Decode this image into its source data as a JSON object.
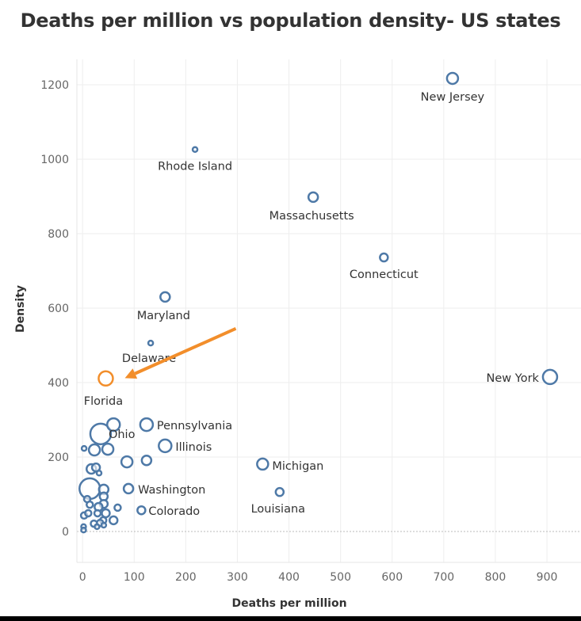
{
  "chart_data": {
    "type": "scatter",
    "title": "Deaths per million vs population density- US states",
    "xlabel": "Deaths per million",
    "ylabel": "Density",
    "xlim": [
      -11,
      966
    ],
    "ylim": [
      -83,
      1268
    ],
    "xticks": [
      "0",
      "100",
      "200",
      "300",
      "400",
      "500",
      "600",
      "700",
      "800",
      "900"
    ],
    "yticks": [
      "0",
      "200",
      "400",
      "600",
      "800",
      "1000",
      "1200"
    ],
    "grid": true,
    "colors": {
      "default": "#4e79a7",
      "highlight": "#f28e2b"
    },
    "points": [
      {
        "label": "New Jersey",
        "x": 717,
        "y": 1217,
        "size": 7
      },
      {
        "label": "Rhode Island",
        "x": 218,
        "y": 1026,
        "size": 3
      },
      {
        "label": "Massachusetts",
        "x": 447,
        "y": 898,
        "size": 6
      },
      {
        "label": "Connecticut",
        "x": 584,
        "y": 736,
        "size": 5
      },
      {
        "label": "Maryland",
        "x": 160,
        "y": 630,
        "size": 6
      },
      {
        "label": "Delaware",
        "x": 132,
        "y": 506,
        "size": 3
      },
      {
        "label": "Florida",
        "x": 45,
        "y": 411,
        "size": 9,
        "highlight": true
      },
      {
        "label": "New York",
        "x": 906,
        "y": 415,
        "size": 9
      },
      {
        "label": "Pennsylvania",
        "x": 124,
        "y": 287,
        "size": 8
      },
      {
        "label": "Ohio",
        "x": 35,
        "y": 262,
        "size": 13
      },
      {
        "label": "Illinois",
        "x": 160,
        "y": 230,
        "size": 8
      },
      {
        "label": "Michigan",
        "x": 349,
        "y": 181,
        "size": 7
      },
      {
        "label": "Louisiana",
        "x": 382,
        "y": 106,
        "size": 5
      },
      {
        "label": "Washington",
        "x": 89,
        "y": 115,
        "size": 6
      },
      {
        "label": "Colorado",
        "x": 114,
        "y": 57,
        "size": 5
      },
      {
        "x": 60,
        "y": 287,
        "size": 8
      },
      {
        "x": 3,
        "y": 223,
        "size": 3
      },
      {
        "x": 23,
        "y": 219,
        "size": 7
      },
      {
        "x": 49,
        "y": 221,
        "size": 7
      },
      {
        "x": 86,
        "y": 187,
        "size": 7
      },
      {
        "x": 124,
        "y": 191,
        "size": 6
      },
      {
        "x": 17,
        "y": 168,
        "size": 6
      },
      {
        "x": 26,
        "y": 172,
        "size": 5
      },
      {
        "x": 32,
        "y": 157,
        "size": 3
      },
      {
        "x": 14,
        "y": 115,
        "size": 13
      },
      {
        "x": 41,
        "y": 113,
        "size": 6
      },
      {
        "x": 41,
        "y": 94,
        "size": 5
      },
      {
        "x": 41,
        "y": 74,
        "size": 5
      },
      {
        "x": 9,
        "y": 87,
        "size": 4
      },
      {
        "x": 14,
        "y": 72,
        "size": 4
      },
      {
        "x": 31,
        "y": 66,
        "size": 5
      },
      {
        "x": 68,
        "y": 64,
        "size": 4
      },
      {
        "x": 3,
        "y": 43,
        "size": 4
      },
      {
        "x": 11,
        "y": 49,
        "size": 4
      },
      {
        "x": 29,
        "y": 49,
        "size": 4
      },
      {
        "x": 45,
        "y": 49,
        "size": 5
      },
      {
        "x": 40,
        "y": 30,
        "size": 4
      },
      {
        "x": 34,
        "y": 23,
        "size": 4
      },
      {
        "x": 60,
        "y": 30,
        "size": 5
      },
      {
        "x": 22,
        "y": 21,
        "size": 4
      },
      {
        "x": 41,
        "y": 17,
        "size": 3
      },
      {
        "x": 2,
        "y": 13,
        "size": 3
      },
      {
        "x": 2,
        "y": 4,
        "size": 3
      },
      {
        "x": 28,
        "y": 13,
        "size": 3
      }
    ],
    "annotation": {
      "type": "arrow",
      "color": "#f28e2b",
      "from": [
        297,
        545
      ],
      "to": [
        82,
        412
      ],
      "points_to": "Florida"
    }
  }
}
